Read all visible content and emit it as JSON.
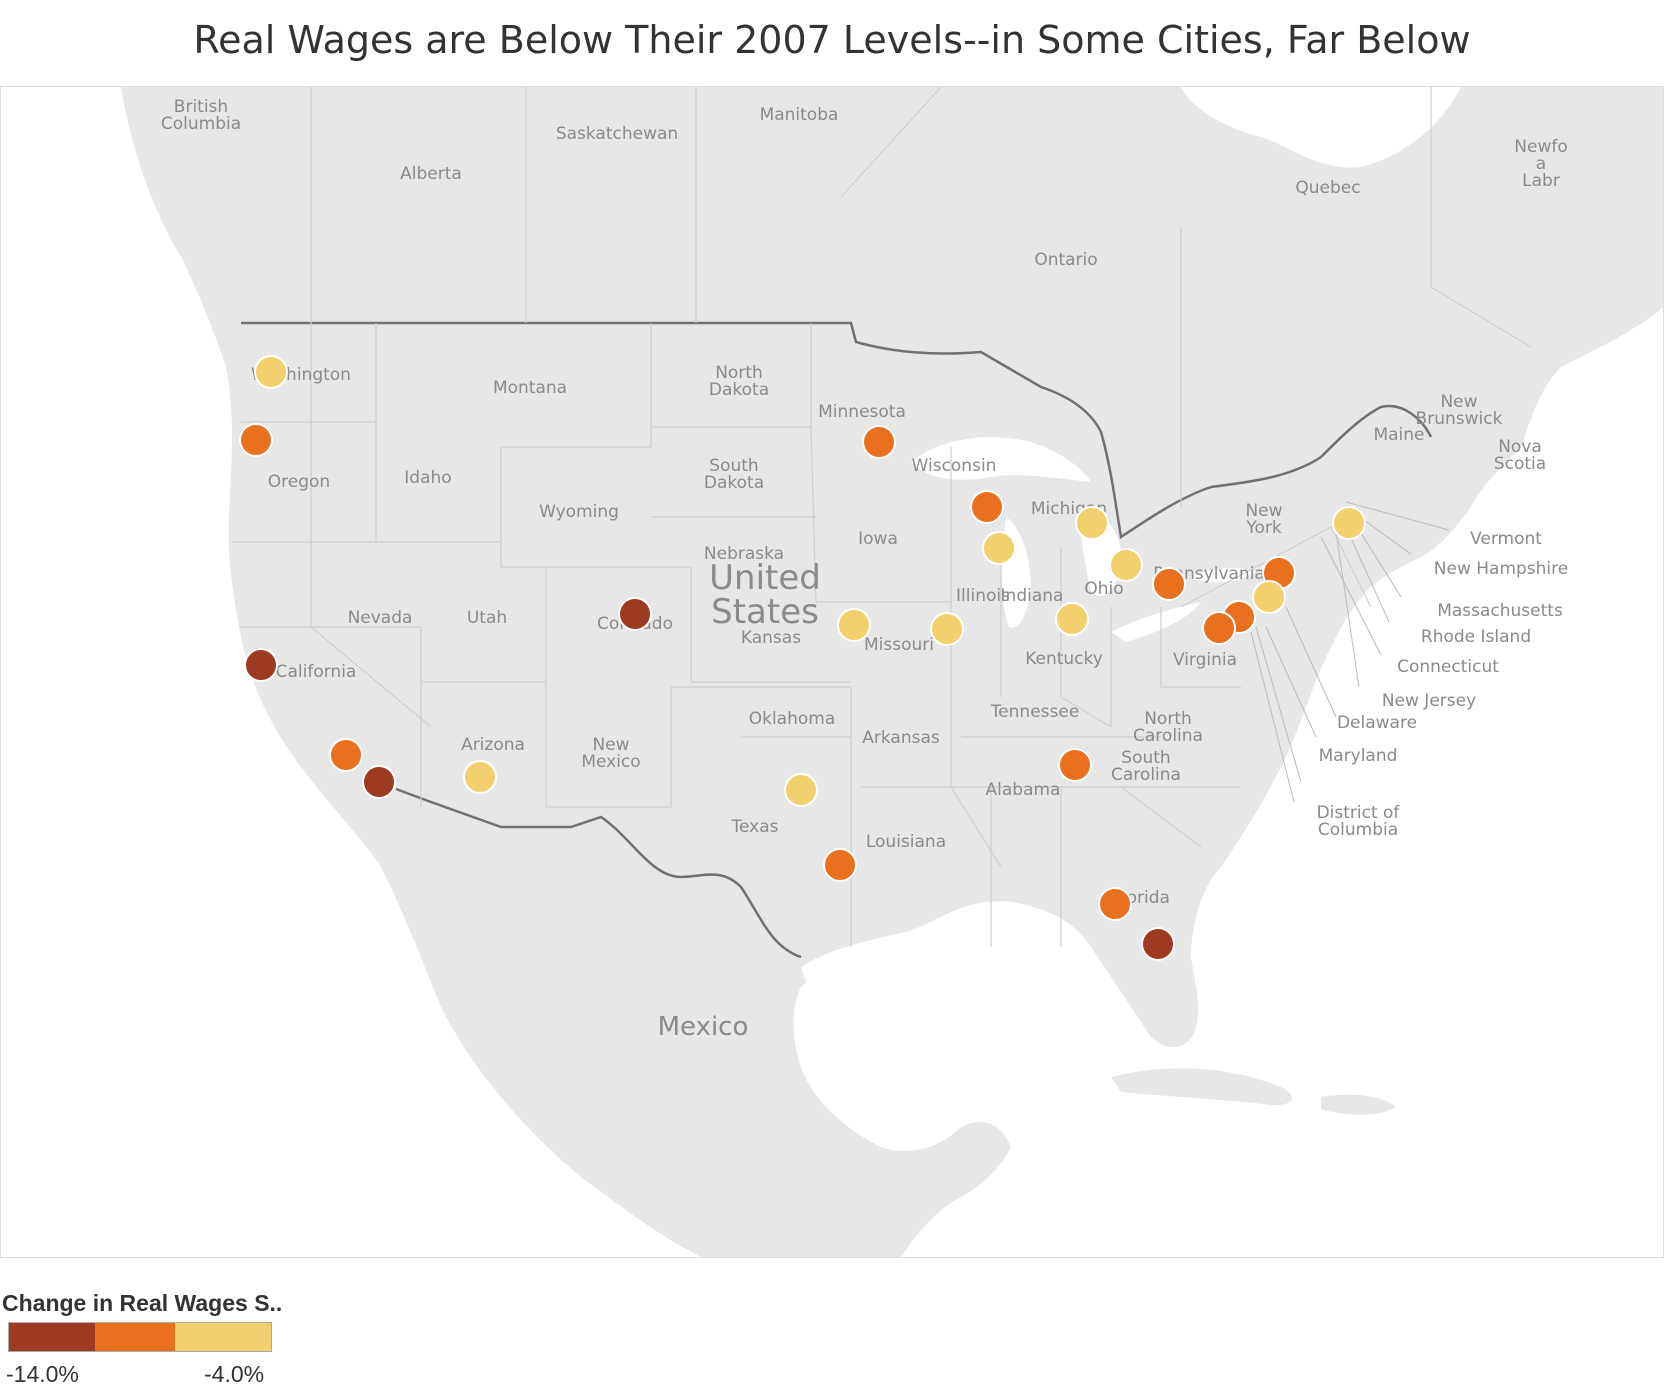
{
  "title": "Real Wages are Below Their 2007 Levels--in Some Cities, Far Below",
  "legend": {
    "title": "Change in Real Wages S..",
    "min_label": "-14.0%",
    "max_label": "-4.0%",
    "bins": [
      "#9c3a22",
      "#e9701f",
      "#f3d06e"
    ]
  },
  "colors": {
    "dark": "#9c3a22",
    "orange": "#e9701f",
    "yellow": "#f3d06e",
    "land": "#e7e7e7",
    "water": "#ffffff",
    "label": "#8a8a8a",
    "border": "#707070"
  },
  "map": {
    "region_labels": [
      "British\nColumbia",
      "Alberta",
      "Saskatchewan",
      "Manitoba",
      "Ontario",
      "Quebec",
      "Newfo\na\nLabr",
      "New\nBrunswick",
      "Nova\nScotia",
      "Maine",
      "Washington",
      "Oregon",
      "Idaho",
      "Montana",
      "North\nDakota",
      "South\nDakota",
      "Wyoming",
      "Minnesota",
      "Wisconsin",
      "Michigan",
      "Iowa",
      "Nebraska",
      "Kansas",
      "Missouri",
      "Illinois",
      "Indiana",
      "Ohio",
      "Pennsylvania",
      "New\nYork",
      "Kentucky",
      "Virginia",
      "Nevada",
      "Utah",
      "Colorado",
      "California",
      "Arizona",
      "New\nMexico",
      "Oklahoma",
      "Texas",
      "Arkansas",
      "Louisiana",
      "Tennessee",
      "Alabama",
      "North\nCarolina",
      "South\nCarolina",
      "Florida",
      "Mexico"
    ],
    "country_label": "United\nStates",
    "callout_labels": [
      "Vermont",
      "New Hampshire",
      "Massachusetts",
      "Rhode Island",
      "Connecticut",
      "New Jersey",
      "Delaware",
      "Maryland",
      "District of\nColumbia"
    ]
  }
}
